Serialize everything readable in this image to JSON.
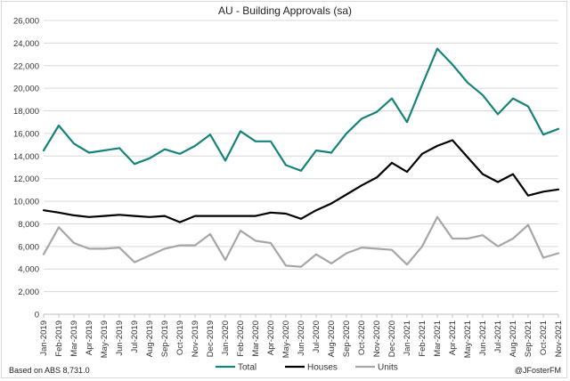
{
  "chart_data": {
    "type": "line",
    "title": "AU - Building Approvals (sa)",
    "xlabel": "",
    "ylabel": "",
    "ylim": [
      0,
      26000
    ],
    "ytick_step": 2000,
    "grid": "horizontal",
    "legend_position": "bottom",
    "categories": [
      "Jan-2019",
      "Feb-2019",
      "Mar-2019",
      "Apr-2019",
      "May-2019",
      "Jun-2019",
      "Jul-2019",
      "Aug-2019",
      "Sep-2019",
      "Oct-2019",
      "Nov-2019",
      "Dec-2019",
      "Jan-2020",
      "Feb-2020",
      "Mar-2020",
      "Apr-2020",
      "May-2020",
      "Jun-2020",
      "Jul-2020",
      "Aug-2020",
      "Sep-2020",
      "Oct-2020",
      "Nov-2020",
      "Dec-2020",
      "Jan-2021",
      "Feb-2021",
      "Mar-2021",
      "Apr-2021",
      "May-2021",
      "Jun-2021",
      "Jul-2021",
      "Aug-2021",
      "Sep-2021",
      "Oct-2021",
      "Nov-2021"
    ],
    "ytick_labels": [
      "0",
      "2,000",
      "4,000",
      "6,000",
      "8,000",
      "10,000",
      "12,000",
      "14,000",
      "16,000",
      "18,000",
      "20,000",
      "22,000",
      "24,000",
      "26,000"
    ],
    "series": [
      {
        "name": "Total",
        "color": "#17827a",
        "values": [
          14500,
          16700,
          15100,
          14300,
          14500,
          14700,
          13300,
          13800,
          14600,
          14200,
          14900,
          15900,
          13600,
          16200,
          15300,
          15300,
          13200,
          12700,
          14500,
          14300,
          16000,
          17300,
          17900,
          19100,
          17000,
          20300,
          23500,
          22100,
          20500,
          19400,
          17700,
          19100,
          18400,
          15900,
          16400
        ]
      },
      {
        "name": "Houses",
        "color": "#000000",
        "values": [
          9200,
          9000,
          8750,
          8600,
          8700,
          8800,
          8700,
          8600,
          8700,
          8150,
          8700,
          8700,
          8700,
          8700,
          8700,
          9000,
          8900,
          8450,
          9200,
          9800,
          10600,
          11400,
          12100,
          13400,
          12600,
          14200,
          14900,
          15400,
          13900,
          12400,
          11700,
          12400,
          10500,
          10850,
          11050
        ]
      },
      {
        "name": "Units",
        "color": "#a6a6a6",
        "values": [
          5300,
          7700,
          6300,
          5800,
          5800,
          5900,
          4600,
          5200,
          5800,
          6100,
          6100,
          7100,
          4800,
          7400,
          6500,
          6300,
          4300,
          4200,
          5300,
          4500,
          5400,
          5900,
          5800,
          5700,
          4400,
          6000,
          8600,
          6700,
          6700,
          7000,
          6000,
          6700,
          7900,
          5000,
          5400
        ]
      }
    ]
  },
  "footer": {
    "source": "Based on ABS 8,731.0",
    "credit": "@JFosterFM"
  }
}
